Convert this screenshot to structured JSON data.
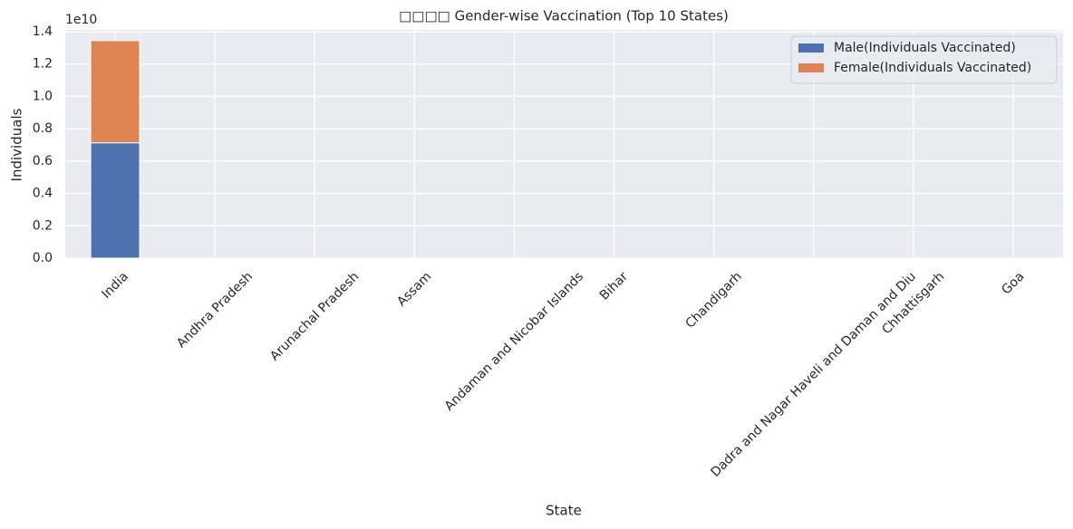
{
  "chart_data": {
    "type": "stacked-bar",
    "title": "□□□□ Gender-wise Vaccination (Top 10 States)",
    "x_label": "State",
    "y_label": "Individuals",
    "y_offset_text": "1e10",
    "categories": [
      "India",
      "Andhra Pradesh",
      "Arunachal Pradesh",
      "Assam",
      "Andaman and Nicobar Islands",
      "Bihar",
      "Chandigarh",
      "Dadra and Nagar Haveli and Daman and Diu",
      "Chhattisgarh",
      "Goa"
    ],
    "series": [
      {
        "name": "Male(Individuals Vaccinated)",
        "color": "#4c72b0",
        "values": [
          7130000000,
          0,
          0,
          0,
          0,
          0,
          0,
          0,
          0,
          0
        ]
      },
      {
        "name": "Female(Individuals Vaccinated)",
        "color": "#dd8452",
        "values": [
          6320000000,
          0,
          0,
          0,
          0,
          0,
          0,
          0,
          0,
          0
        ]
      }
    ],
    "ylim": [
      0,
      14000000000
    ],
    "yticks": [
      {
        "value": 0,
        "label": "0.0"
      },
      {
        "value": 2000000000,
        "label": "0.2"
      },
      {
        "value": 4000000000,
        "label": "0.4"
      },
      {
        "value": 6000000000,
        "label": "0.6"
      },
      {
        "value": 8000000000,
        "label": "0.8"
      },
      {
        "value": 10000000000,
        "label": "1.0"
      },
      {
        "value": 12000000000,
        "label": "1.2"
      },
      {
        "value": 14000000000,
        "label": "1.4"
      }
    ],
    "grid": true,
    "legend": "upper right"
  }
}
